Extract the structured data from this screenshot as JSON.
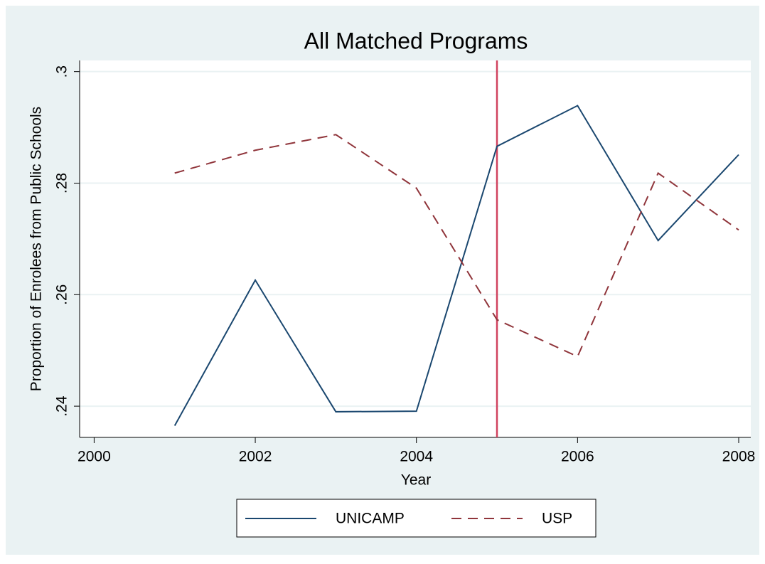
{
  "chart_data": {
    "type": "line",
    "title": "All Matched Programs",
    "x_label": "Year",
    "y_label": "Proportion of Enrolees from Public Schools",
    "x": [
      2001,
      2002,
      2003,
      2004,
      2005,
      2006,
      2007,
      2008
    ],
    "series": [
      {
        "name": "UNICAMP",
        "color": "#1a476f",
        "dashed": false,
        "values": [
          0.2365,
          0.2626,
          0.239,
          0.2391,
          0.2866,
          0.2939,
          0.2697,
          0.2851
        ]
      },
      {
        "name": "USP",
        "color": "#90353b",
        "dashed": true,
        "values": [
          0.2818,
          0.2859,
          0.2887,
          0.2791,
          0.2555,
          0.2489,
          0.2818,
          0.2716
        ]
      }
    ],
    "vline": {
      "value": 2005,
      "color": "#d0435f"
    },
    "xlim": [
      1999.82,
      2008.15
    ],
    "xticks": [
      2000,
      2002,
      2004,
      2006,
      2008
    ],
    "ylim": [
      0.2344,
      0.302
    ],
    "yticks": [
      {
        "value": 0.24,
        "label": ".24"
      },
      {
        "value": 0.26,
        "label": ".26"
      },
      {
        "value": 0.28,
        "label": ".28"
      },
      {
        "value": 0.3,
        "label": ".3"
      }
    ],
    "grid": true
  }
}
